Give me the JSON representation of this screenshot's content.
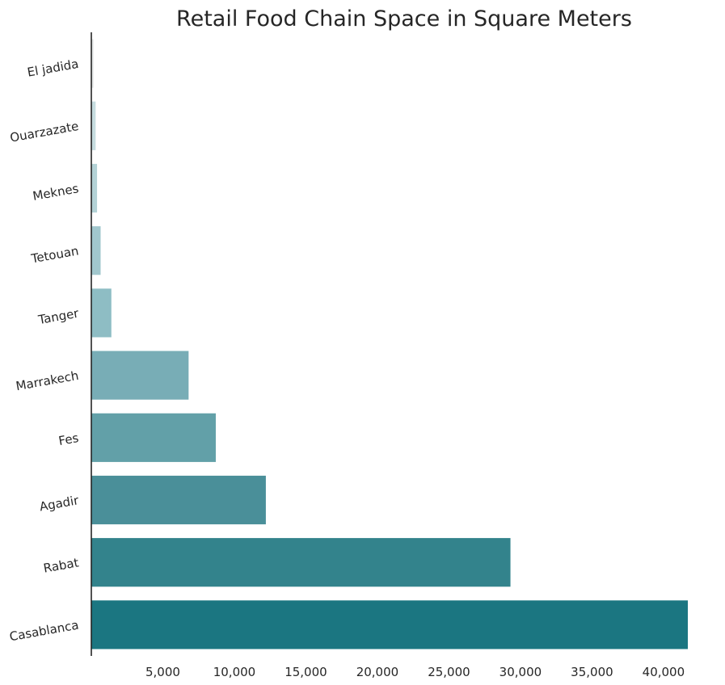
{
  "chart_data": {
    "type": "bar",
    "orientation": "horizontal",
    "title": "Retail Food Chain Space in Square Meters",
    "xlabel": "",
    "ylabel": "",
    "categories": [
      "El jadida",
      "Ouarzazate",
      "Meknes",
      "Tetouan",
      "Tanger",
      "Marrakech",
      "Fes",
      "Agadir",
      "Rabat",
      "Casablanca"
    ],
    "values": [
      150,
      300,
      400,
      650,
      1400,
      6800,
      8700,
      12200,
      29300,
      41700
    ],
    "xlim": [
      0,
      41700
    ],
    "xticks": [
      5000,
      10000,
      15000,
      20000,
      25000,
      30000,
      35000,
      40000
    ],
    "xtick_labels": [
      "5,000",
      "10,000",
      "15,000",
      "20,000",
      "25,000",
      "30,000",
      "35,000",
      "40,000"
    ],
    "colors": [
      "#e2e6e6",
      "#c6dcdf",
      "#b3d2d6",
      "#a1c7cd",
      "#8ebdc4",
      "#78adb6",
      "#62a0a8",
      "#4a8f99",
      "#33838c",
      "#1b7681"
    ],
    "grid": false,
    "legend": "none"
  }
}
